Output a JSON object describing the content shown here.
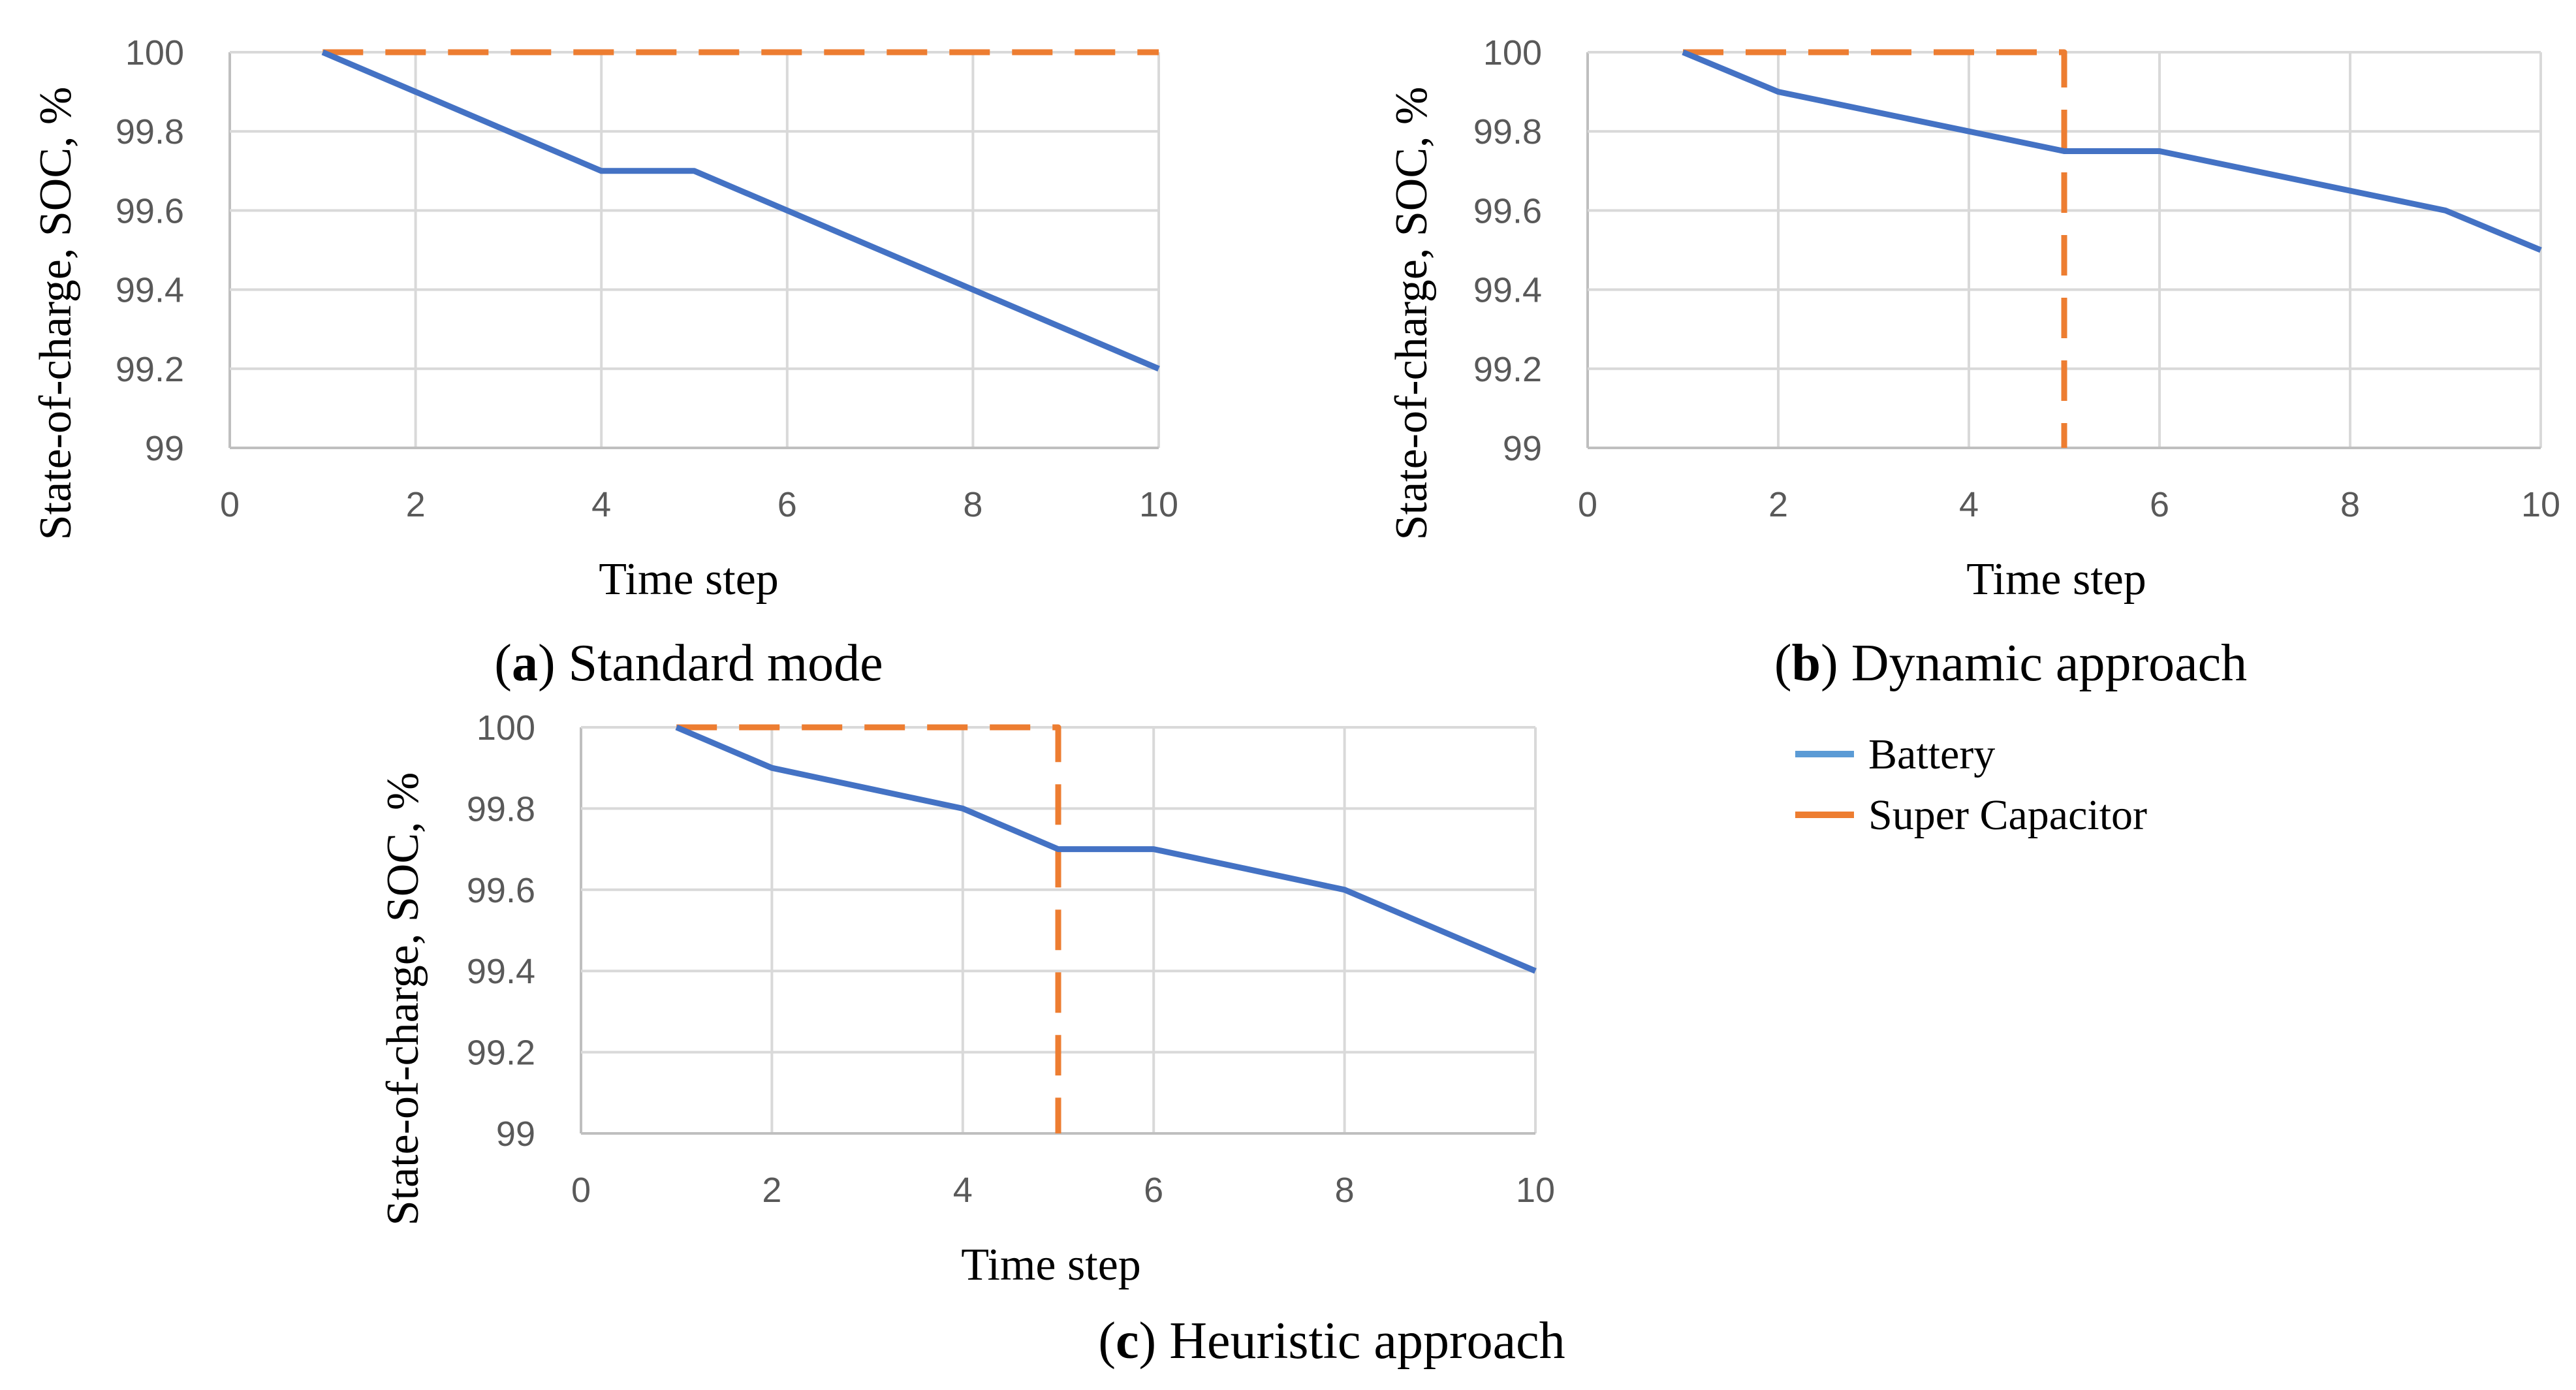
{
  "colors": {
    "battery": "#4472C4",
    "super_capacitor": "#ED7D31",
    "legend_battery": "#5B9BD5",
    "grid": "#d9d9d9",
    "tick_text": "#595959"
  },
  "legend": {
    "items": [
      {
        "label": "Battery",
        "color": "#5B9BD5",
        "style": "solid"
      },
      {
        "label": "Super Capacitor",
        "color": "#ED7D31",
        "style": "solid"
      }
    ]
  },
  "chart_data": [
    {
      "id": "a",
      "type": "line",
      "caption_letter": "a",
      "caption_text": "Standard mode",
      "xlabel": "Time step",
      "ylabel": "State-of-charge, SOC, %",
      "xlim": [
        0,
        10
      ],
      "ylim": [
        99,
        100
      ],
      "xticks": [
        "0",
        "2",
        "4",
        "6",
        "8",
        "10"
      ],
      "yticks": [
        "100",
        "99.8",
        "99.6",
        "99.4",
        "99.2",
        "99"
      ],
      "xtick_values": [
        0,
        2,
        4,
        6,
        8,
        10
      ],
      "ytick_values": [
        100,
        99.8,
        99.6,
        99.4,
        99.2,
        99
      ],
      "grid": true,
      "series": [
        {
          "name": "Battery",
          "style": "solid",
          "points": [
            [
              1,
              100
            ],
            [
              2,
              99.9
            ],
            [
              3,
              99.8
            ],
            [
              4,
              99.7
            ],
            [
              5,
              99.7
            ],
            [
              6,
              99.6
            ],
            [
              7,
              99.5
            ],
            [
              8,
              99.4
            ],
            [
              9,
              99.3
            ],
            [
              10,
              99.2
            ]
          ]
        },
        {
          "name": "Super Capacitor",
          "style": "dashed",
          "points": [
            [
              1,
              100
            ],
            [
              10,
              100
            ]
          ]
        }
      ]
    },
    {
      "id": "b",
      "type": "line",
      "caption_letter": "b",
      "caption_text": "Dynamic approach",
      "xlabel": "Time step",
      "ylabel": "State-of-charge, SOC, %",
      "xlim": [
        0,
        10
      ],
      "ylim": [
        99,
        100
      ],
      "xticks": [
        "0",
        "2",
        "4",
        "6",
        "8",
        "10"
      ],
      "yticks": [
        "100",
        "99.8",
        "99.6",
        "99.4",
        "99.2",
        "99"
      ],
      "xtick_values": [
        0,
        2,
        4,
        6,
        8,
        10
      ],
      "ytick_values": [
        100,
        99.8,
        99.6,
        99.4,
        99.2,
        99
      ],
      "grid": true,
      "series": [
        {
          "name": "Battery",
          "style": "solid",
          "points": [
            [
              1,
              100
            ],
            [
              2,
              99.9
            ],
            [
              3,
              99.85
            ],
            [
              4,
              99.8
            ],
            [
              5,
              99.75
            ],
            [
              6,
              99.75
            ],
            [
              7,
              99.7
            ],
            [
              8,
              99.65
            ],
            [
              9,
              99.6
            ],
            [
              10,
              99.5
            ]
          ]
        },
        {
          "name": "Super Capacitor",
          "style": "dashed",
          "points": [
            [
              1,
              100
            ],
            [
              5,
              100
            ],
            [
              5,
              99
            ]
          ]
        }
      ]
    },
    {
      "id": "c",
      "type": "line",
      "caption_letter": "c",
      "caption_text": "Heuristic approach",
      "xlabel": "Time step",
      "ylabel": "State-of-charge, SOC, %",
      "xlim": [
        0,
        10
      ],
      "ylim": [
        99,
        100
      ],
      "xticks": [
        "0",
        "2",
        "4",
        "6",
        "8",
        "10"
      ],
      "yticks": [
        "100",
        "99.8",
        "99.6",
        "99.4",
        "99.2",
        "99"
      ],
      "xtick_values": [
        0,
        2,
        4,
        6,
        8,
        10
      ],
      "ytick_values": [
        100,
        99.8,
        99.6,
        99.4,
        99.2,
        99
      ],
      "grid": true,
      "series": [
        {
          "name": "Battery",
          "style": "solid",
          "points": [
            [
              1,
              100
            ],
            [
              2,
              99.9
            ],
            [
              3,
              99.85
            ],
            [
              4,
              99.8
            ],
            [
              5,
              99.7
            ],
            [
              6,
              99.7
            ],
            [
              7,
              99.65
            ],
            [
              8,
              99.6
            ],
            [
              9,
              99.5
            ],
            [
              10,
              99.4
            ]
          ]
        },
        {
          "name": "Super Capacitor",
          "style": "dashed",
          "points": [
            [
              1,
              100
            ],
            [
              5,
              100
            ],
            [
              5,
              99
            ]
          ]
        }
      ]
    }
  ]
}
